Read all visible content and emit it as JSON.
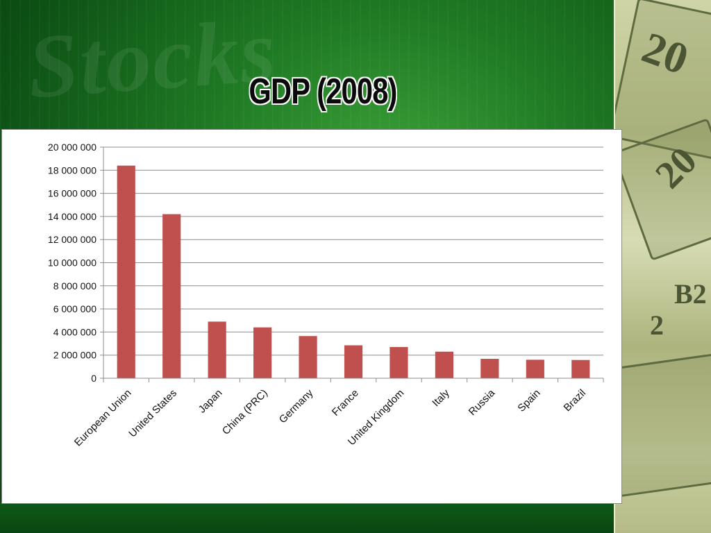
{
  "slide": {
    "title": "GDP (2008)",
    "background_color": "#1f7a24",
    "decorative_word": "Stocks",
    "money_numerals": [
      "20",
      "20",
      "B2",
      "2"
    ]
  },
  "chart_data": {
    "type": "bar",
    "title": "",
    "xlabel": "",
    "ylabel": "",
    "categories": [
      "European Union",
      "United States",
      "Japan",
      "China (PRC)",
      "Germany",
      "France",
      "United Kingdom",
      "Italy",
      "Russia",
      "Spain",
      "Brazil"
    ],
    "series": [
      {
        "values": [
          18400000,
          14200000,
          4900000,
          4400000,
          3650000,
          2850000,
          2700000,
          2300000,
          1680000,
          1600000,
          1580000
        ],
        "color": "#c0504d"
      }
    ],
    "ylim": [
      0,
      20000000
    ],
    "yticks": [
      0,
      2000000,
      4000000,
      6000000,
      8000000,
      10000000,
      12000000,
      14000000,
      16000000,
      18000000,
      20000000
    ],
    "ytick_labels": [
      "0",
      "2 000 000",
      "4 000 000",
      "6 000 000",
      "8 000 000",
      "10 000 000",
      "12 000 000",
      "14 000 000",
      "16 000 000",
      "18 000 000",
      "20 000 000"
    ],
    "grid": true,
    "legend": "none"
  }
}
